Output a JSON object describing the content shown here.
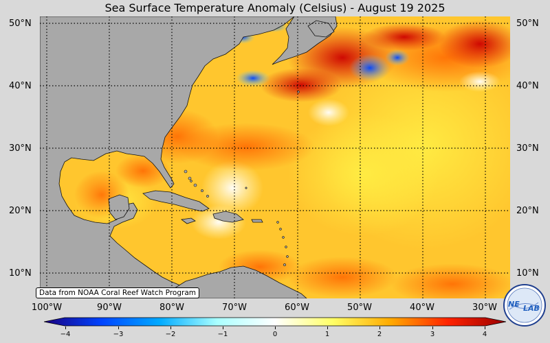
{
  "title": "Sea Surface Temperature Anomaly (Celsius) - August 19 2025",
  "source_note": "Data from NOAA Coral Reef Watch Program",
  "latitude_ticks": [
    {
      "label": "50°N",
      "value": 50
    },
    {
      "label": "40°N",
      "value": 40
    },
    {
      "label": "30°N",
      "value": 30
    },
    {
      "label": "20°N",
      "value": 20
    },
    {
      "label": "10°N",
      "value": 10
    }
  ],
  "longitude_ticks": [
    {
      "label": "100°W",
      "value": -100
    },
    {
      "label": "90°W",
      "value": -90
    },
    {
      "label": "80°W",
      "value": -80
    },
    {
      "label": "70°W",
      "value": -70
    },
    {
      "label": "60°W",
      "value": -60
    },
    {
      "label": "50°W",
      "value": -50
    },
    {
      "label": "40°W",
      "value": -40
    },
    {
      "label": "30°W",
      "value": -30
    }
  ],
  "colorbar": {
    "min": -4,
    "max": 4,
    "ticks": [
      {
        "label": "−4",
        "value": -4
      },
      {
        "label": "−3",
        "value": -3
      },
      {
        "label": "−2",
        "value": -2
      },
      {
        "label": "−1",
        "value": -1
      },
      {
        "label": "0",
        "value": 0
      },
      {
        "label": "1",
        "value": 1
      },
      {
        "label": "2",
        "value": 2
      },
      {
        "label": "3",
        "value": 3
      },
      {
        "label": "4",
        "value": 4
      }
    ],
    "colors": [
      "#1a0080",
      "#0044ff",
      "#00aaff",
      "#aaffff",
      "#ffffff",
      "#ffff66",
      "#ffaa00",
      "#ff2200",
      "#990000"
    ]
  },
  "logo": {
    "text_1": "NE",
    "text_2": "LAB"
  },
  "colors": {
    "land": "#a8a8a8",
    "ocean_warm": "#ffcc33",
    "background": "#d9d9d9"
  }
}
